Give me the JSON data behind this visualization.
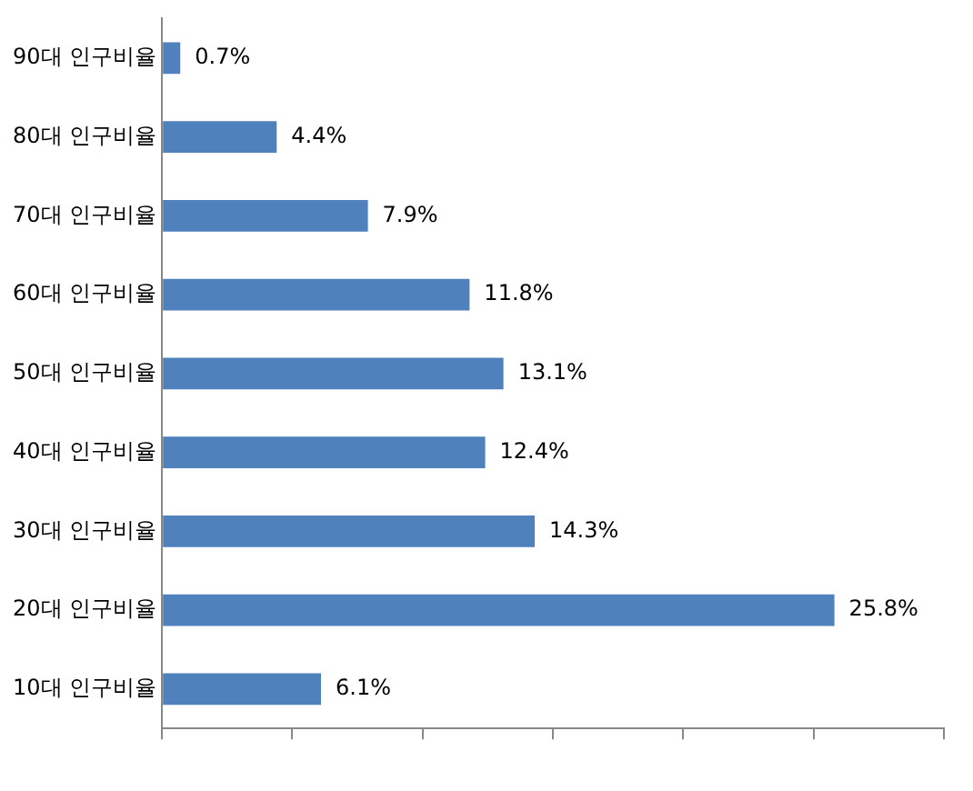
{
  "chart_data": {
    "type": "bar",
    "orientation": "horizontal",
    "categories": [
      "90대 인구비율",
      "80대 인구비율",
      "70대 인구비율",
      "60대 인구비율",
      "50대 인구비율",
      "40대 인구비율",
      "30대 인구비율",
      "20대 인구비율",
      "10대 인구비율"
    ],
    "values": [
      0.7,
      4.4,
      7.9,
      11.8,
      13.1,
      12.4,
      14.3,
      25.8,
      6.1
    ],
    "value_labels": [
      "0.7%",
      "4.4%",
      "7.9%",
      "11.8%",
      "13.1%",
      "12.4%",
      "14.3%",
      "25.8%",
      "6.1%"
    ],
    "color": "#4f81bd",
    "xlim": [
      0,
      30
    ],
    "xticks": [
      {
        "value": 0,
        "label": null
      },
      {
        "value": 5,
        "label": null
      },
      {
        "value": 10,
        "label": null
      },
      {
        "value": 15,
        "label": null
      },
      {
        "value": 20,
        "label": null
      },
      {
        "value": 25,
        "label": null
      },
      {
        "value": 30,
        "label": null
      }
    ],
    "grid": false,
    "legend": false
  }
}
